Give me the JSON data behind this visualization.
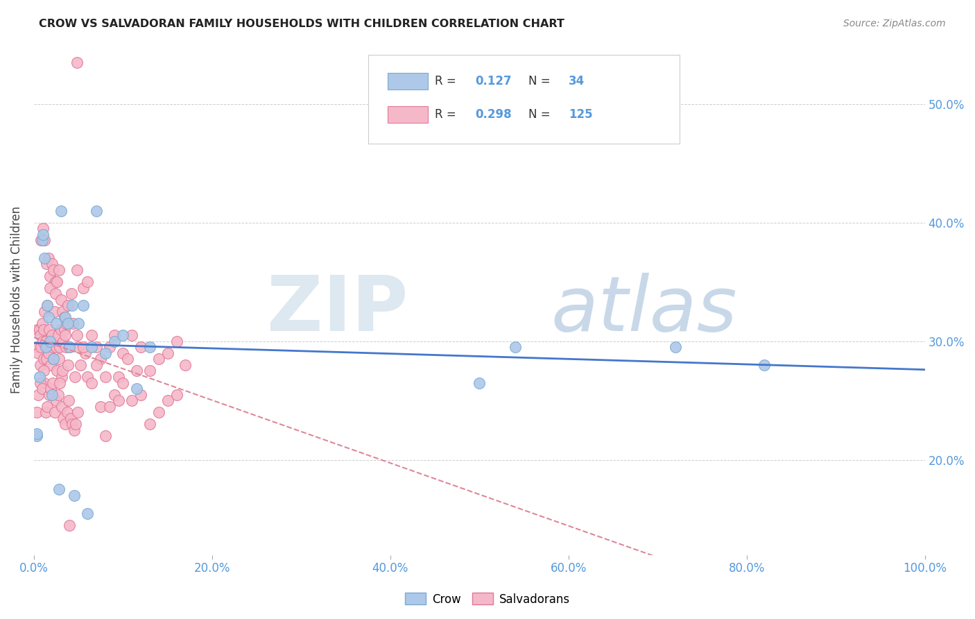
{
  "title": "CROW VS SALVADORAN FAMILY HOUSEHOLDS WITH CHILDREN CORRELATION CHART",
  "source": "Source: ZipAtlas.com",
  "ylabel": "Family Households with Children",
  "xlim": [
    0.0,
    1.0
  ],
  "ylim": [
    0.12,
    0.55
  ],
  "xticks": [
    0.0,
    0.2,
    0.4,
    0.6,
    0.8,
    1.0
  ],
  "xtick_labels": [
    "0.0%",
    "20.0%",
    "40.0%",
    "60.0%",
    "80.0%",
    "100.0%"
  ],
  "yticks": [
    0.2,
    0.3,
    0.4,
    0.5
  ],
  "ytick_labels": [
    "20.0%",
    "30.0%",
    "40.0%",
    "50.0%"
  ],
  "crow_R": 0.127,
  "crow_N": 34,
  "salv_R": 0.298,
  "salv_N": 125,
  "crow_color": "#adc8e8",
  "crow_edge_color": "#7aaad0",
  "salv_color": "#f5b8c8",
  "salv_edge_color": "#e07898",
  "trend_crow_color": "#4477cc",
  "trend_salv_color": "#dd8899",
  "tick_color": "#5599dd",
  "title_color": "#222222",
  "source_color": "#888888",
  "watermark_zip_color": "#dde8f0",
  "watermark_atlas_color": "#c8d8e8",
  "crow_x": [
    0.003,
    0.003,
    0.006,
    0.009,
    0.01,
    0.012,
    0.013,
    0.015,
    0.016,
    0.018,
    0.02,
    0.022,
    0.025,
    0.028,
    0.03,
    0.035,
    0.038,
    0.04,
    0.043,
    0.045,
    0.05,
    0.055,
    0.06,
    0.065,
    0.07,
    0.08,
    0.09,
    0.1,
    0.115,
    0.13,
    0.5,
    0.54,
    0.72,
    0.82
  ],
  "crow_y": [
    0.22,
    0.222,
    0.27,
    0.385,
    0.39,
    0.37,
    0.295,
    0.33,
    0.32,
    0.3,
    0.255,
    0.285,
    0.315,
    0.175,
    0.41,
    0.32,
    0.315,
    0.295,
    0.33,
    0.17,
    0.315,
    0.33,
    0.155,
    0.295,
    0.41,
    0.29,
    0.3,
    0.305,
    0.26,
    0.295,
    0.265,
    0.295,
    0.295,
    0.28
  ],
  "salv_x": [
    0.003,
    0.004,
    0.005,
    0.006,
    0.007,
    0.007,
    0.008,
    0.009,
    0.01,
    0.011,
    0.011,
    0.012,
    0.012,
    0.013,
    0.014,
    0.015,
    0.015,
    0.016,
    0.017,
    0.018,
    0.019,
    0.02,
    0.021,
    0.022,
    0.023,
    0.024,
    0.025,
    0.026,
    0.027,
    0.028,
    0.029,
    0.03,
    0.031,
    0.032,
    0.033,
    0.034,
    0.035,
    0.036,
    0.038,
    0.04,
    0.042,
    0.044,
    0.046,
    0.048,
    0.05,
    0.052,
    0.055,
    0.058,
    0.06,
    0.065,
    0.07,
    0.075,
    0.08,
    0.085,
    0.09,
    0.095,
    0.1,
    0.105,
    0.11,
    0.115,
    0.12,
    0.13,
    0.14,
    0.15,
    0.16,
    0.17,
    0.048,
    0.04,
    0.008,
    0.01,
    0.012,
    0.014,
    0.016,
    0.018,
    0.02,
    0.022,
    0.024,
    0.026,
    0.028,
    0.03,
    0.032,
    0.034,
    0.036,
    0.038,
    0.003,
    0.005,
    0.007,
    0.009,
    0.011,
    0.013,
    0.015,
    0.017,
    0.019,
    0.021,
    0.023,
    0.025,
    0.027,
    0.029,
    0.031,
    0.033,
    0.035,
    0.037,
    0.039,
    0.041,
    0.043,
    0.045,
    0.047,
    0.049,
    0.055,
    0.06,
    0.065,
    0.07,
    0.075,
    0.08,
    0.085,
    0.09,
    0.095,
    0.1,
    0.11,
    0.12,
    0.13,
    0.14,
    0.15,
    0.16,
    0.048
  ],
  "salv_y": [
    0.295,
    0.31,
    0.29,
    0.31,
    0.305,
    0.28,
    0.295,
    0.315,
    0.3,
    0.285,
    0.31,
    0.325,
    0.265,
    0.3,
    0.285,
    0.295,
    0.33,
    0.29,
    0.31,
    0.355,
    0.28,
    0.305,
    0.295,
    0.285,
    0.325,
    0.35,
    0.295,
    0.275,
    0.305,
    0.285,
    0.295,
    0.31,
    0.27,
    0.275,
    0.3,
    0.31,
    0.305,
    0.295,
    0.28,
    0.295,
    0.34,
    0.315,
    0.27,
    0.305,
    0.295,
    0.28,
    0.345,
    0.29,
    0.35,
    0.305,
    0.295,
    0.285,
    0.27,
    0.295,
    0.305,
    0.27,
    0.29,
    0.285,
    0.305,
    0.275,
    0.295,
    0.275,
    0.285,
    0.29,
    0.3,
    0.28,
    0.535,
    0.145,
    0.385,
    0.395,
    0.385,
    0.365,
    0.37,
    0.345,
    0.365,
    0.36,
    0.34,
    0.35,
    0.36,
    0.335,
    0.325,
    0.32,
    0.315,
    0.33,
    0.24,
    0.255,
    0.265,
    0.26,
    0.275,
    0.24,
    0.245,
    0.255,
    0.26,
    0.265,
    0.24,
    0.25,
    0.255,
    0.265,
    0.245,
    0.235,
    0.23,
    0.24,
    0.25,
    0.235,
    0.23,
    0.225,
    0.23,
    0.24,
    0.295,
    0.27,
    0.265,
    0.28,
    0.245,
    0.22,
    0.245,
    0.255,
    0.25,
    0.265,
    0.25,
    0.255,
    0.23,
    0.24,
    0.25,
    0.255,
    0.36
  ]
}
